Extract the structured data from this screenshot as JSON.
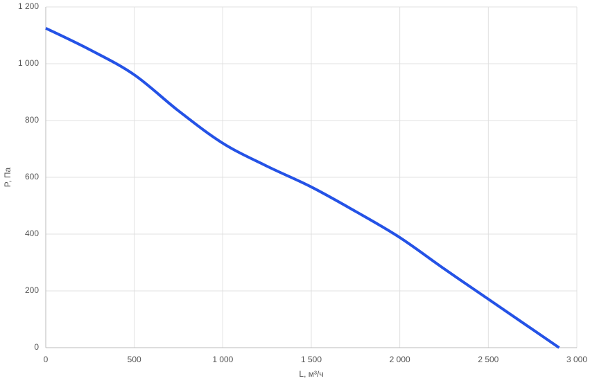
{
  "chart_data": {
    "type": "line",
    "x_label": "L, м³/ч",
    "y_label": "P, Па",
    "x": [
      0,
      250,
      500,
      750,
      1000,
      1250,
      1500,
      1750,
      2000,
      2250,
      2500,
      2900
    ],
    "series": [
      {
        "color": "#2452e6",
        "values": [
          1125,
          1049,
          961,
          834,
          720,
          639,
          566,
          480,
          388,
          278,
          171,
          0
        ]
      }
    ],
    "xlim": [
      0,
      3000
    ],
    "xticks": [
      0,
      500,
      {
        "value": 1000,
        "label": "1 000"
      },
      {
        "value": 1500,
        "label": "1 500"
      },
      {
        "value": 2000,
        "label": "2 000"
      },
      {
        "value": 2500,
        "label": "2 500"
      },
      {
        "value": 3000,
        "label": "3 000"
      }
    ],
    "ylim": [
      0,
      1200
    ],
    "yticks": [
      0,
      200,
      400,
      600,
      800,
      {
        "value": 1000,
        "label": "1 000"
      },
      {
        "value": 1200,
        "label": "1 200"
      }
    ],
    "grid": true
  }
}
